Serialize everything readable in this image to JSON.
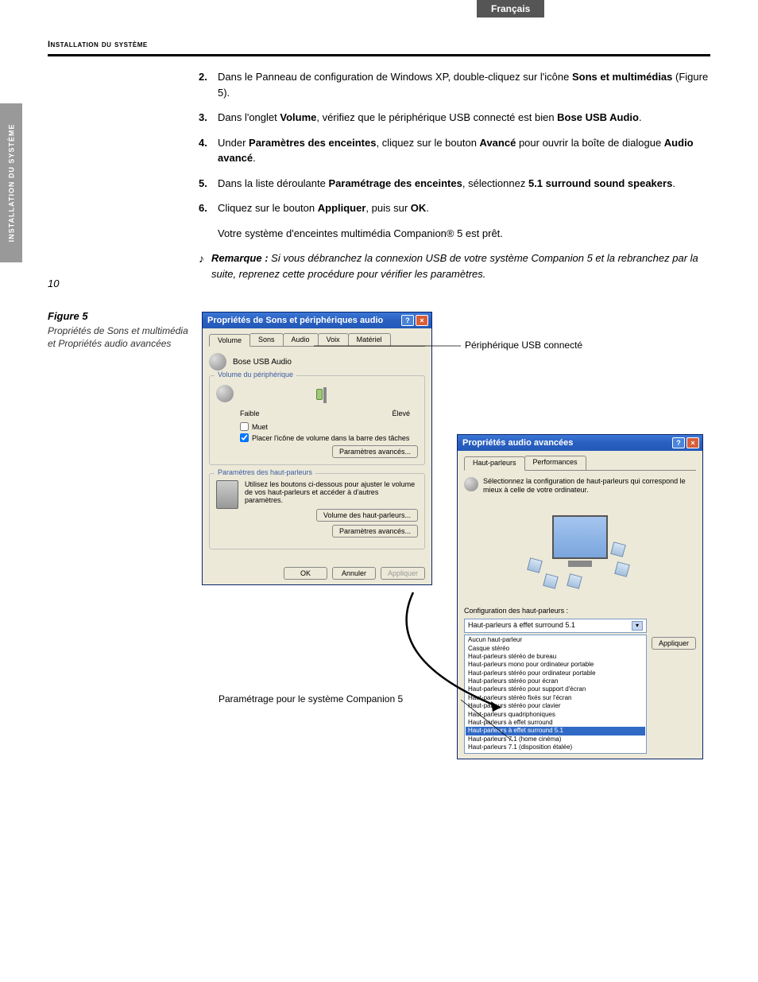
{
  "lang_tab": "Français",
  "section_header": "Installation du système",
  "side_tab": "INSTALLATION DU SYSTÈME",
  "steps": {
    "s2_num": "2.",
    "s2_a": "Dans le Panneau de configuration de Windows XP, double-cliquez sur l'icône ",
    "s2_b": "Sons et multimédias",
    "s2_c": " (Figure 5).",
    "s3_num": "3.",
    "s3_a": "Dans l'onglet ",
    "s3_b": "Volume",
    "s3_c": ", vérifiez que le périphérique USB connecté est bien ",
    "s3_d": "Bose USB Audio",
    "s3_e": ".",
    "s4_num": "4.",
    "s4_a": "Under ",
    "s4_b": "Paramètres des enceintes",
    "s4_c": ", cliquez sur le bouton ",
    "s4_d": "Avancé",
    "s4_e": " pour ouvrir la boîte de dialogue ",
    "s4_f": "Audio avancé",
    "s4_g": ".",
    "s5_num": "5.",
    "s5_a": "Dans la liste déroulante ",
    "s5_b": "Paramétrage des enceintes",
    "s5_c": ", sélectionnez ",
    "s5_d": "5.1 surround sound speakers",
    "s5_e": ".",
    "s6_num": "6.",
    "s6_a": "Cliquez sur le bouton ",
    "s6_b": "Appliquer",
    "s6_c": ", puis sur ",
    "s6_d": "OK",
    "s6_e": ".",
    "ready": "Votre système d'enceintes multimédia Companion® 5 est prêt."
  },
  "note": {
    "label": "Remarque :",
    "text": " Si vous débranchez la connexion USB de votre système Companion 5 et la rebranchez par la suite, reprenez cette procédure pour vérifier les paramètres."
  },
  "figure": {
    "title": "Figure 5",
    "caption": "Propriétés de Sons et multimédia et Propriétés audio avancées"
  },
  "win1": {
    "title": "Propriétés de Sons et périphériques audio",
    "tabs": {
      "t1": "Volume",
      "t2": "Sons",
      "t3": "Audio",
      "t4": "Voix",
      "t5": "Matériel"
    },
    "device_name": "Bose USB Audio",
    "grp_vol": "Volume du périphérique",
    "low": "Faible",
    "high": "Élevé",
    "mute": "Muet",
    "taskbar": "Placer l'icône de volume dans la barre des tâches",
    "adv_params": "Paramètres avancés...",
    "grp_spk": "Paramètres des haut-parleurs",
    "spk_text": "Utilisez les boutons ci-dessous pour ajuster le volume de vos haut-parleurs et accéder à d'autres paramètres.",
    "spk_vol_btn": "Volume des haut-parleurs...",
    "spk_adv_btn": "Paramètres avancés...",
    "ok": "OK",
    "cancel": "Annuler",
    "apply": "Appliquer"
  },
  "win2": {
    "title": "Propriétés audio avancées",
    "tab1": "Haut-parleurs",
    "tab2": "Performances",
    "instr": "Sélectionnez la configuration de haut-parleurs qui correspond le mieux à celle de votre ordinateur.",
    "config_label": "Configuration des haut-parleurs :",
    "selected": "Haut-parleurs à effet surround 5.1",
    "apply": "Appliquer",
    "options": [
      "Aucun haut-parleur",
      "Casque stéréo",
      "Haut-parleurs stéréo de bureau",
      "Haut-parleurs mono pour ordinateur portable",
      "Haut-parleurs stéréo pour ordinateur portable",
      "Haut-parleurs stéréo pour écran",
      "Haut-parleurs stéréo pour support d'écran",
      "Haut-parleurs stéréo fixés sur l'écran",
      "Haut-parleurs stéréo pour clavier",
      "Haut-parleurs quadriphoniques",
      "Haut-parleurs à effet surround",
      "Haut-parleurs à effet surround 5.1",
      "Haut-parleurs 7.1 (home cinéma)",
      "Haut-parleurs 7.1 (disposition étalée)"
    ],
    "selected_index": 11
  },
  "callouts": {
    "usb": "Périphérique USB connecté",
    "param": "Paramétrage pour le système Companion 5"
  },
  "page_number": "10"
}
